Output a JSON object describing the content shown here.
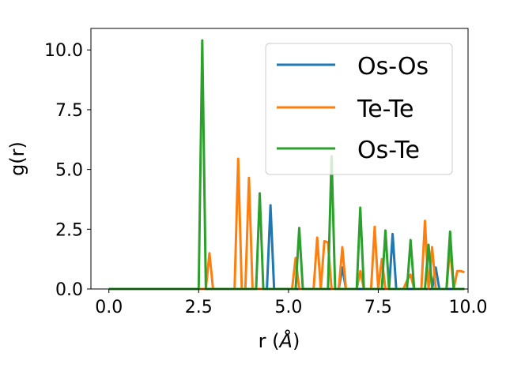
{
  "chart_data": {
    "type": "line",
    "xlabel": "r (",
    "xlabel_unit": "Å",
    "xlabel_close": ")",
    "ylabel": "g(r)",
    "xlim": [
      -0.5,
      10.0
    ],
    "ylim": [
      0,
      10.9
    ],
    "xticks": [
      0.0,
      2.5,
      5.0,
      7.5,
      10.0
    ],
    "xtick_labels": [
      "0.0",
      "2.5",
      "5.0",
      "7.5",
      "10.0"
    ],
    "yticks": [
      0.0,
      2.5,
      5.0,
      7.5,
      10.0
    ],
    "ytick_labels": [
      "0.0",
      "2.5",
      "5.0",
      "7.5",
      "10.0"
    ],
    "grid": false,
    "legend_position": "top-right",
    "series": [
      {
        "name": "Os-Os",
        "color": "#1f77b4",
        "points": [
          [
            0,
            0
          ],
          [
            4.4,
            0
          ],
          [
            4.5,
            3.5
          ],
          [
            4.6,
            0
          ],
          [
            6.4,
            0
          ],
          [
            6.5,
            0.9
          ],
          [
            6.6,
            0
          ],
          [
            7.8,
            0
          ],
          [
            7.9,
            2.3
          ],
          [
            8.0,
            0
          ],
          [
            9.0,
            0
          ],
          [
            9.1,
            0.9
          ],
          [
            9.2,
            0
          ],
          [
            9.9,
            0
          ]
        ]
      },
      {
        "name": "Te-Te",
        "color": "#ff7f0e",
        "points": [
          [
            0,
            0
          ],
          [
            2.7,
            0
          ],
          [
            2.8,
            1.5
          ],
          [
            2.9,
            0
          ],
          [
            3.5,
            0
          ],
          [
            3.6,
            5.45
          ],
          [
            3.7,
            0
          ],
          [
            3.8,
            0
          ],
          [
            3.9,
            4.65
          ],
          [
            4.0,
            0
          ],
          [
            5.1,
            0
          ],
          [
            5.2,
            1.3
          ],
          [
            5.3,
            0
          ],
          [
            5.7,
            0
          ],
          [
            5.8,
            2.15
          ],
          [
            5.9,
            0
          ],
          [
            6.0,
            2.0
          ],
          [
            6.1,
            1.95
          ],
          [
            6.2,
            0
          ],
          [
            6.4,
            0
          ],
          [
            6.5,
            1.75
          ],
          [
            6.6,
            0
          ],
          [
            6.9,
            0
          ],
          [
            7.0,
            0.75
          ],
          [
            7.1,
            0
          ],
          [
            7.3,
            0
          ],
          [
            7.4,
            2.6
          ],
          [
            7.5,
            0
          ],
          [
            7.6,
            1.25
          ],
          [
            7.7,
            0
          ],
          [
            8.2,
            0
          ],
          [
            8.3,
            0.35
          ],
          [
            8.4,
            0.6
          ],
          [
            8.5,
            0
          ],
          [
            8.7,
            0
          ],
          [
            8.8,
            2.85
          ],
          [
            8.9,
            0
          ],
          [
            9.0,
            1.75
          ],
          [
            9.1,
            0
          ],
          [
            9.4,
            0
          ],
          [
            9.5,
            1.75
          ],
          [
            9.6,
            0
          ],
          [
            9.7,
            0.75
          ],
          [
            9.8,
            0.75
          ],
          [
            9.9,
            0.7
          ]
        ]
      },
      {
        "name": "Os-Te",
        "color": "#2ca02c",
        "points": [
          [
            0,
            0
          ],
          [
            2.5,
            0
          ],
          [
            2.6,
            10.4
          ],
          [
            2.7,
            0
          ],
          [
            4.1,
            0
          ],
          [
            4.2,
            4.0
          ],
          [
            4.3,
            0
          ],
          [
            5.2,
            0
          ],
          [
            5.3,
            2.55
          ],
          [
            5.4,
            0
          ],
          [
            6.1,
            0
          ],
          [
            6.2,
            5.55
          ],
          [
            6.3,
            0
          ],
          [
            6.9,
            0
          ],
          [
            7.0,
            3.4
          ],
          [
            7.1,
            0
          ],
          [
            7.6,
            0
          ],
          [
            7.7,
            2.45
          ],
          [
            7.8,
            0
          ],
          [
            8.3,
            0
          ],
          [
            8.4,
            2.05
          ],
          [
            8.5,
            0
          ],
          [
            8.8,
            0
          ],
          [
            8.9,
            1.85
          ],
          [
            9.0,
            0
          ],
          [
            9.4,
            0
          ],
          [
            9.5,
            2.4
          ],
          [
            9.6,
            0
          ],
          [
            9.9,
            0
          ]
        ]
      }
    ]
  }
}
